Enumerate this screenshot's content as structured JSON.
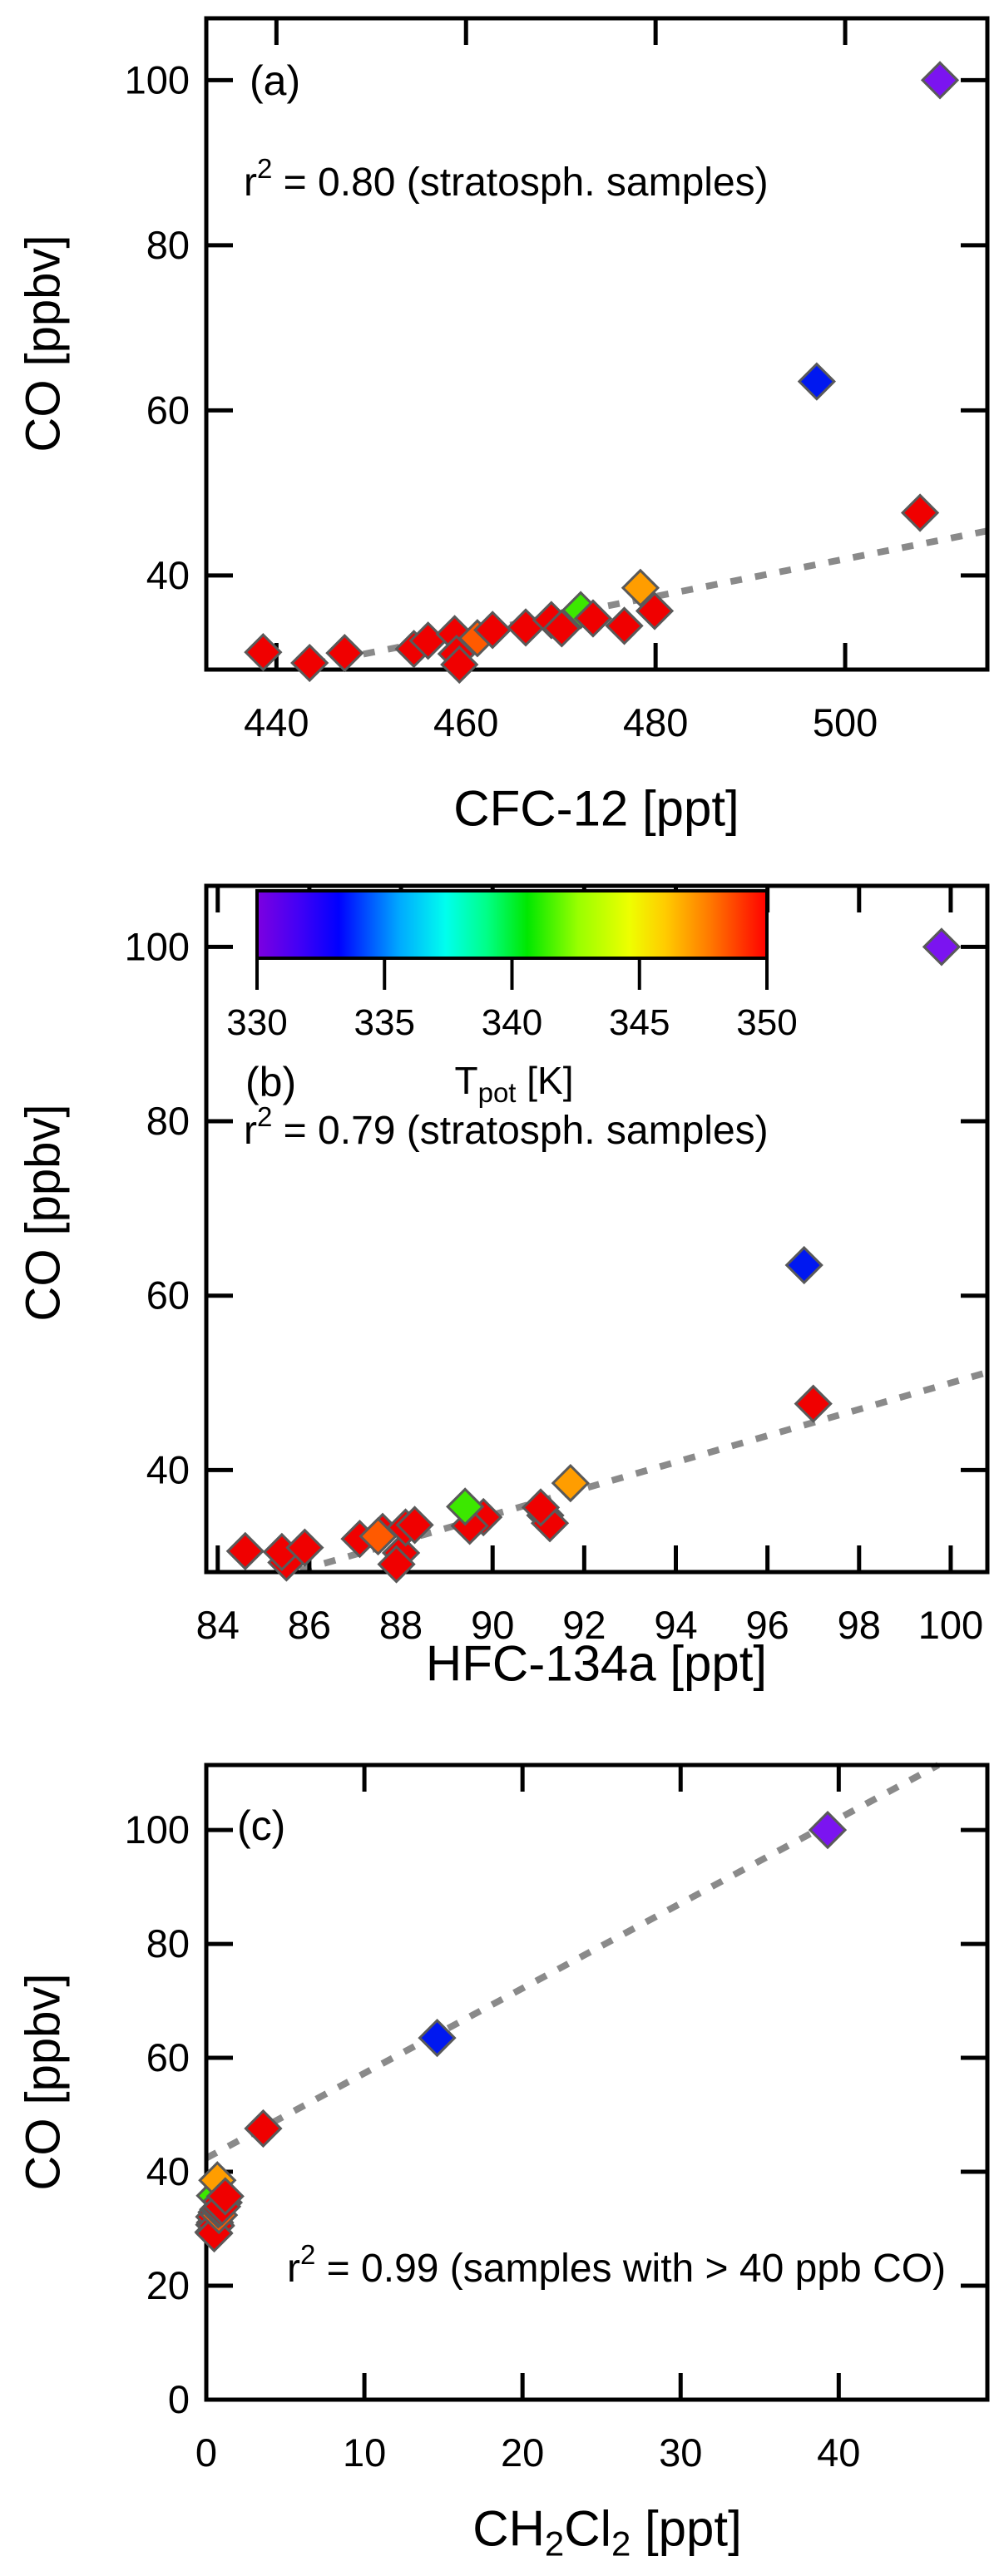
{
  "figure": {
    "background": "#ffffff",
    "frame_color": "#000000",
    "trend_color": "#8a8a8a",
    "marker_outline": "#595959"
  },
  "marker_colors": {
    "red": "#f00000",
    "orangered": "#ff5a00",
    "orange": "#ff9d00",
    "green": "#3ce800",
    "blue": "#0018f0",
    "violet": "#7b14f0"
  },
  "chart_data": [
    {
      "panel": "a",
      "type": "scatter",
      "panel_label": "(a)",
      "xlabel": "CFC-12 [ppt]",
      "ylabel": "CO [ppbv]",
      "annotation": {
        "r": "r",
        "exp": "2",
        "rest": " = 0.80 (stratosph. samples)"
      },
      "xlim": [
        432.6,
        515.0
      ],
      "ylim": [
        28.6,
        107.5
      ],
      "xticks": [
        440,
        460,
        480,
        500
      ],
      "yticks": [
        40,
        60,
        80,
        100
      ],
      "grid": false,
      "legend": "none",
      "trend": {
        "style": "dotted",
        "x1": 444.0,
        "y1": 29.3,
        "x2": 515.0,
        "y2": 45.4
      },
      "points": [
        [
          438.6,
          30.7,
          "red"
        ],
        [
          443.5,
          29.4,
          "red"
        ],
        [
          447.2,
          30.6,
          "red"
        ],
        [
          454.5,
          31.1,
          "red"
        ],
        [
          456.0,
          32.1,
          "red"
        ],
        [
          458.8,
          32.9,
          "red"
        ],
        [
          459.0,
          30.5,
          "red"
        ],
        [
          459.3,
          29.2,
          "red"
        ],
        [
          461.2,
          32.4,
          "orangered"
        ],
        [
          462.8,
          33.4,
          "red"
        ],
        [
          466.3,
          33.7,
          "red"
        ],
        [
          469.0,
          34.6,
          "red"
        ],
        [
          470.1,
          33.6,
          "red"
        ],
        [
          472.1,
          35.8,
          "green"
        ],
        [
          473.4,
          34.8,
          "red"
        ],
        [
          476.7,
          33.9,
          "red"
        ],
        [
          478.4,
          38.5,
          "orange"
        ],
        [
          479.9,
          35.7,
          "red"
        ],
        [
          497.0,
          63.5,
          "blue"
        ],
        [
          507.9,
          47.6,
          "red"
        ],
        [
          510.0,
          100.0,
          "violet"
        ]
      ]
    },
    {
      "panel": "b",
      "type": "scatter",
      "panel_label": "(b)",
      "xlabel": "HFC-134a [ppt]",
      "ylabel": "CO [ppbv]",
      "annotation": {
        "r": "r",
        "exp": "2",
        "rest": " = 0.79 (stratosph. samples)"
      },
      "xlim": [
        83.75,
        100.8
      ],
      "ylim": [
        28.3,
        107.0
      ],
      "xticks": [
        84,
        86,
        88,
        90,
        92,
        94,
        96,
        98,
        100
      ],
      "yticks": [
        40,
        60,
        80,
        100
      ],
      "grid": false,
      "legend": "colorbar",
      "colorbar": {
        "caption": {
          "t": "T",
          "sub": "pot",
          "unit": " [K]"
        },
        "min": 330,
        "max": 350,
        "ticks": [
          330,
          335,
          340,
          345,
          350
        ],
        "gradient": [
          [
            0.0,
            "#7d00e0"
          ],
          [
            0.08,
            "#4400f5"
          ],
          [
            0.16,
            "#0000ff"
          ],
          [
            0.28,
            "#00aaff"
          ],
          [
            0.37,
            "#00ffee"
          ],
          [
            0.45,
            "#00ff88"
          ],
          [
            0.53,
            "#00e800"
          ],
          [
            0.63,
            "#99ff00"
          ],
          [
            0.73,
            "#eeff00"
          ],
          [
            0.8,
            "#ffcc00"
          ],
          [
            0.89,
            "#ff7700"
          ],
          [
            1.0,
            "#ff0000"
          ]
        ]
      },
      "trend": {
        "style": "dotted",
        "x1": 85.8,
        "y1": 28.5,
        "x2": 100.8,
        "y2": 51.2
      },
      "points": [
        [
          84.6,
          30.7,
          "red"
        ],
        [
          85.5,
          29.4,
          "red"
        ],
        [
          85.4,
          30.6,
          "red"
        ],
        [
          85.9,
          31.1,
          "red"
        ],
        [
          87.1,
          32.1,
          "red"
        ],
        [
          87.6,
          32.9,
          "red"
        ],
        [
          88.0,
          30.5,
          "red"
        ],
        [
          87.9,
          29.2,
          "red"
        ],
        [
          87.5,
          32.4,
          "orangered"
        ],
        [
          88.1,
          33.4,
          "red"
        ],
        [
          88.3,
          33.7,
          "red"
        ],
        [
          89.8,
          34.6,
          "red"
        ],
        [
          89.5,
          33.6,
          "red"
        ],
        [
          89.4,
          35.8,
          "green"
        ],
        [
          91.15,
          34.8,
          "red"
        ],
        [
          91.25,
          33.9,
          "red"
        ],
        [
          91.7,
          38.5,
          "orange"
        ],
        [
          91.05,
          35.7,
          "red"
        ],
        [
          96.8,
          63.5,
          "blue"
        ],
        [
          97.0,
          47.6,
          "red"
        ],
        [
          99.8,
          100.0,
          "violet"
        ]
      ]
    },
    {
      "panel": "c",
      "type": "scatter",
      "panel_label": "(c)",
      "xlabel_parts": {
        "p0": "CH",
        "s0": "2",
        "p1": "Cl",
        "s1": "2",
        "p2": " [ppt]"
      },
      "ylabel": "CO [ppbv]",
      "annotation": {
        "r": "r",
        "exp": "2",
        "rest": " = 0.99 (samples with > 40 ppb CO)"
      },
      "xlim": [
        0,
        49.4
      ],
      "ylim": [
        0,
        111.4
      ],
      "xticks": [
        0,
        10,
        20,
        30,
        40
      ],
      "yticks": [
        0,
        20,
        40,
        60,
        80,
        100
      ],
      "grid": false,
      "legend": "none",
      "trend": {
        "style": "dotted",
        "x1": 0.0,
        "y1": 42.4,
        "x2": 46.3,
        "y2": 111.4
      },
      "points": [
        [
          0.5,
          30.7,
          "red"
        ],
        [
          0.45,
          29.4,
          "red"
        ],
        [
          0.6,
          30.6,
          "red"
        ],
        [
          0.55,
          31.1,
          "red"
        ],
        [
          0.5,
          32.1,
          "red"
        ],
        [
          0.65,
          32.9,
          "red"
        ],
        [
          0.6,
          30.5,
          "red"
        ],
        [
          0.5,
          29.2,
          "red"
        ],
        [
          0.8,
          32.4,
          "orangered"
        ],
        [
          0.75,
          33.4,
          "red"
        ],
        [
          0.9,
          33.7,
          "red"
        ],
        [
          1.1,
          34.6,
          "red"
        ],
        [
          0.85,
          33.6,
          "red"
        ],
        [
          0.55,
          35.8,
          "green"
        ],
        [
          0.95,
          34.8,
          "red"
        ],
        [
          1.0,
          33.9,
          "red"
        ],
        [
          0.7,
          38.5,
          "orange"
        ],
        [
          1.2,
          35.7,
          "red"
        ],
        [
          14.6,
          63.5,
          "blue"
        ],
        [
          3.6,
          47.6,
          "red"
        ],
        [
          39.3,
          100.0,
          "violet"
        ]
      ]
    }
  ]
}
